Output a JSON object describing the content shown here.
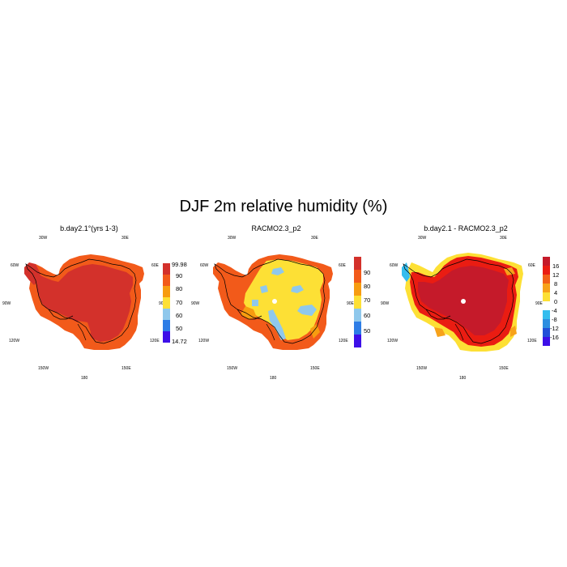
{
  "title": "DJF 2m relative humidity (%)",
  "panels": [
    {
      "title": "b.day2.1°(yrs 1-3)",
      "lon_labels": {
        "w30": "30W",
        "e30": "30E",
        "w60": "60W",
        "e60": "60E",
        "w90": "90W",
        "e90": "90E",
        "w120": "120W",
        "e120": "120E",
        "w150": "150W",
        "e150": "150E",
        "s180": "180"
      },
      "colorbar": {
        "colors": [
          "#3d0fe8",
          "#2d7de6",
          "#8fc8ec",
          "#fde035",
          "#f79c10",
          "#f25a1a",
          "#d3312b"
        ],
        "labels": [
          "14.72",
          "50",
          "60",
          "70",
          "80",
          "90",
          "99.98"
        ]
      }
    },
    {
      "title": "RACMO2.3_p2",
      "lon_labels": {
        "w30": "30W",
        "e30": "30E",
        "w60": "60W",
        "e60": "60E",
        "w90": "90W",
        "e90": "90E",
        "w120": "120W",
        "e120": "120E",
        "w150": "150W",
        "e150": "150E",
        "s180": "180"
      },
      "colorbar": {
        "colors": [
          "#3d0fe8",
          "#2d7de6",
          "#8fc8ec",
          "#fde035",
          "#f79c10",
          "#f25a1a",
          "#d3312b"
        ],
        "labels": [
          "50",
          "60",
          "70",
          "80",
          "90"
        ]
      }
    },
    {
      "title": "b.day2.1 - RACMO2.3_p2",
      "lon_labels": {
        "w30": "30W",
        "e30": "30E",
        "w60": "60W",
        "e60": "60E",
        "w90": "90W",
        "e90": "90E",
        "w120": "120W",
        "e120": "120E",
        "w150": "150W",
        "e150": "150E",
        "s180": "180"
      },
      "colorbar": {
        "colors": [
          "#3d0fe8",
          "#2350d8",
          "#2d8ee0",
          "#34bdee",
          "#ffffff",
          "#fde035",
          "#f7a21a",
          "#f26018",
          "#ea1c12",
          "#c51a2a"
        ],
        "labels": [
          "-16",
          "-12",
          "-8",
          "-4",
          "0",
          "4",
          "8",
          "12",
          "16"
        ]
      }
    }
  ],
  "colors": {
    "dark_red": "#d3312b",
    "orange": "#f25a1a",
    "light_orange": "#f79c10",
    "yellow": "#fde035",
    "light_blue": "#8fc8ec",
    "red": "#ea1c12"
  }
}
